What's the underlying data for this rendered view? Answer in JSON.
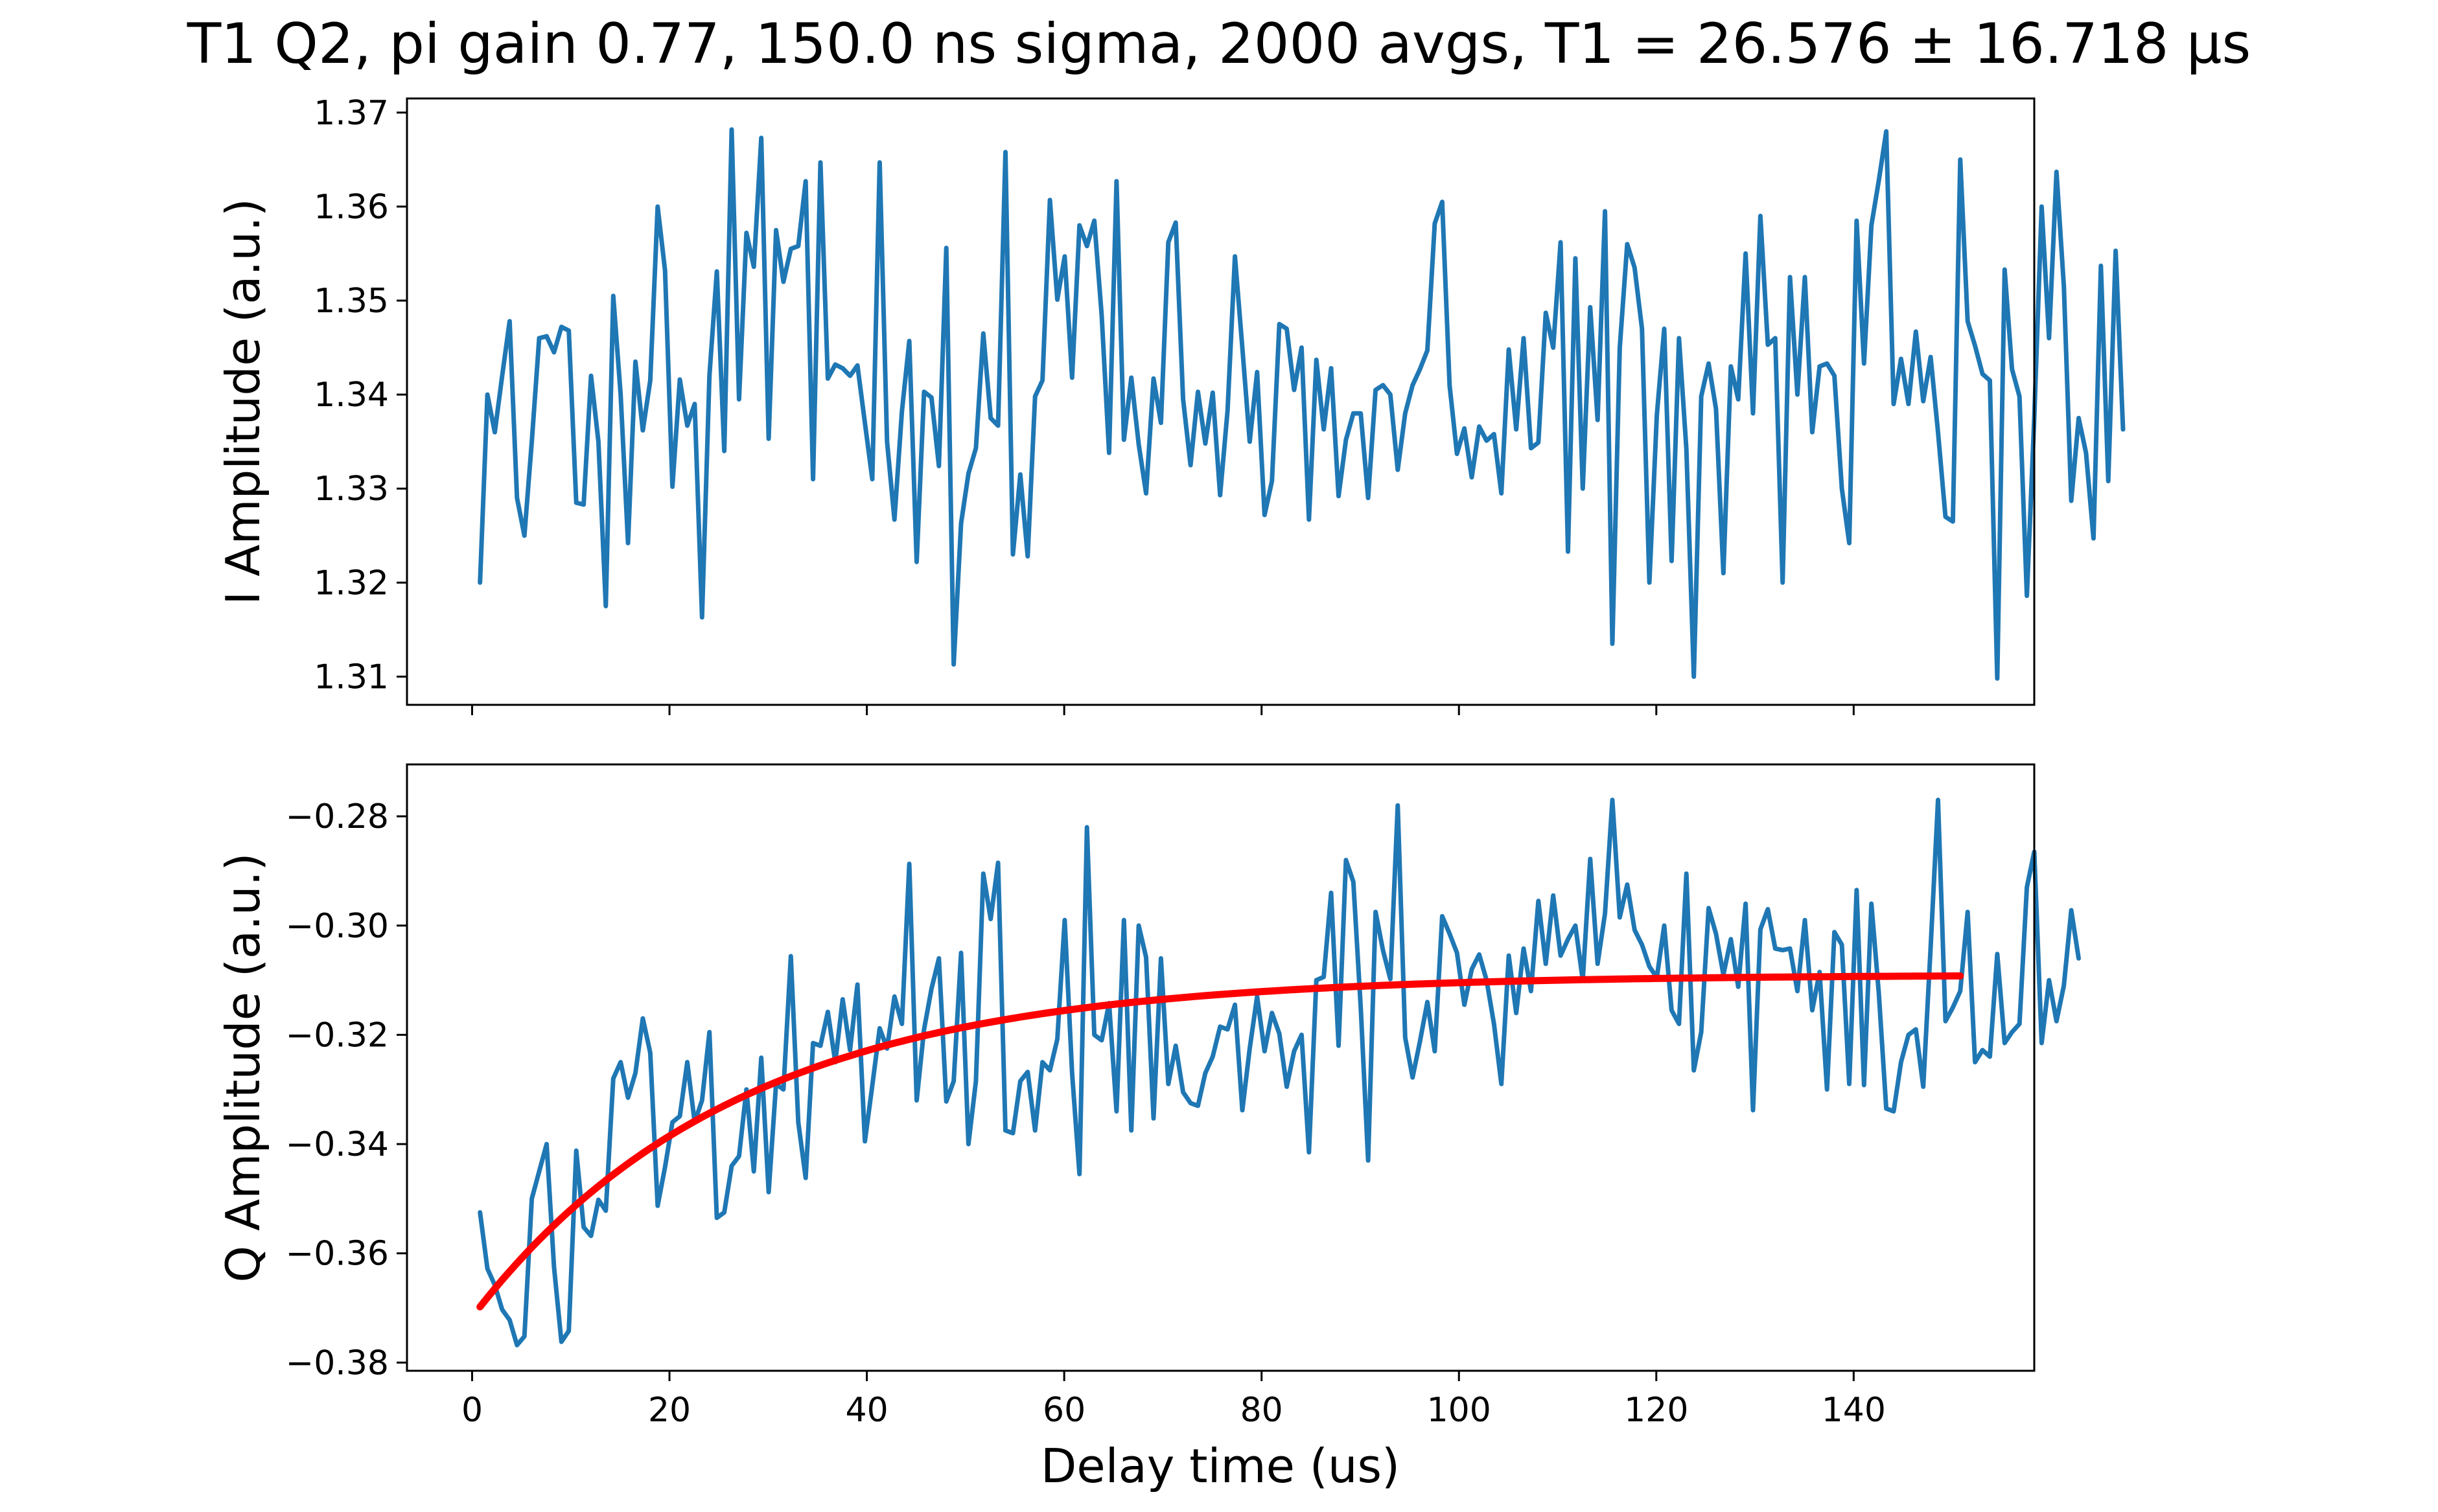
{
  "colors": {
    "data_line": "#1f77b4",
    "fit_line": "#ff0000",
    "axes": "#000000",
    "background": "#ffffff"
  },
  "chart_data": [
    {
      "id": "i-panel",
      "type": "line",
      "title": "T1 Q2, pi gain 0.77, 150.0 ns sigma, 2000 avgs, T1 = 26.576 ± 16.718 μs",
      "xlabel": "",
      "ylabel": "I Amplitude (a.u.)",
      "xlim": [
        -6.6,
        158.3
      ],
      "ylim": [
        1.307,
        1.3715
      ],
      "grid": false,
      "xticks": [
        0,
        20,
        40,
        60,
        80,
        100,
        120,
        140
      ],
      "xtick_labels_shown": false,
      "yticks": [
        1.31,
        1.32,
        1.33,
        1.34,
        1.35,
        1.36,
        1.37
      ],
      "ytick_labels": [
        "1.31",
        "1.32",
        "1.33",
        "1.34",
        "1.35",
        "1.36",
        "1.37"
      ],
      "x_start": 0.8,
      "x_step": 0.75,
      "series": [
        {
          "values": [
            1.32,
            1.34,
            1.336,
            1.342,
            1.3478,
            1.329,
            1.325,
            1.335,
            1.346,
            1.3462,
            1.3445,
            1.3472,
            1.3468,
            1.3285,
            1.3283,
            1.342,
            1.335,
            1.3175,
            1.3505,
            1.34,
            1.3242,
            1.3435,
            1.3362,
            1.3415,
            1.36,
            1.3532,
            1.3302,
            1.3416,
            1.3367,
            1.339,
            1.3163,
            1.342,
            1.3531,
            1.334,
            1.3682,
            1.3395,
            1.3572,
            1.3536,
            1.3673,
            1.3353,
            1.3575,
            1.352,
            1.3555,
            1.3558,
            1.3627,
            1.331,
            1.3647,
            1.3417,
            1.3432,
            1.3428,
            1.342,
            1.3431,
            1.337,
            1.331,
            1.3647,
            1.335,
            1.3267,
            1.3382,
            1.3457,
            1.3222,
            1.3403,
            1.3397,
            1.3324,
            1.3556,
            1.3113,
            1.3263,
            1.3316,
            1.3343,
            1.3465,
            1.3375,
            1.3367,
            1.3658,
            1.323,
            1.3315,
            1.3228,
            1.3398,
            1.3415,
            1.3607,
            1.3501,
            1.3547,
            1.3418,
            1.358,
            1.3558,
            1.3585,
            1.3484,
            1.3338,
            1.3627,
            1.3352,
            1.3418,
            1.3347,
            1.3295,
            1.3417,
            1.337,
            1.3562,
            1.3583,
            1.3395,
            1.3325,
            1.3403,
            1.3348,
            1.3402,
            1.3293,
            1.3383,
            1.3547,
            1.345,
            1.335,
            1.3424,
            1.3272,
            1.3308,
            1.3475,
            1.347,
            1.3405,
            1.345,
            1.3267,
            1.3437,
            1.3363,
            1.3428,
            1.3292,
            1.3352,
            1.338,
            1.338,
            1.329,
            1.3405,
            1.341,
            1.34,
            1.332,
            1.338,
            1.341,
            1.3427,
            1.3447,
            1.3582,
            1.3605,
            1.341,
            1.3337,
            1.3364,
            1.3312,
            1.3366,
            1.3351,
            1.3358,
            1.3295,
            1.3448,
            1.3363,
            1.346,
            1.3343,
            1.3349,
            1.3487,
            1.345,
            1.3562,
            1.3233,
            1.3545,
            1.33,
            1.3493,
            1.3373,
            1.3595,
            1.3135,
            1.345,
            1.356,
            1.3535,
            1.347,
            1.32,
            1.3378,
            1.347,
            1.3223,
            1.346,
            1.3342,
            1.31,
            1.3398,
            1.3433,
            1.3385,
            1.321,
            1.343,
            1.3395,
            1.355,
            1.338,
            1.359,
            1.3453,
            1.346,
            1.32,
            1.3525,
            1.34,
            1.3525,
            1.336,
            1.343,
            1.3433,
            1.342,
            1.33,
            1.3242,
            1.3585,
            1.3433,
            1.358,
            1.3628,
            1.368,
            1.339,
            1.3438,
            1.339,
            1.3467,
            1.3393,
            1.344,
            1.336,
            1.327,
            1.3265,
            1.365,
            1.3478,
            1.3452,
            1.3422,
            1.3415,
            1.3098,
            1.3533,
            1.3427,
            1.3398,
            1.3186,
            1.3375,
            1.36,
            1.346,
            1.3637,
            1.3515,
            1.3287,
            1.3375,
            1.3338,
            1.3247,
            1.3537,
            1.3308,
            1.3553,
            1.3363
          ]
        }
      ]
    },
    {
      "id": "q-panel",
      "type": "line",
      "xlabel": "Delay time (us)",
      "ylabel": "Q Amplitude (a.u.)",
      "xlim": [
        -6.6,
        158.3
      ],
      "ylim": [
        -0.3815,
        -0.2705
      ],
      "grid": false,
      "xticks": [
        0,
        20,
        40,
        60,
        80,
        100,
        120,
        140
      ],
      "xtick_labels": [
        "0",
        "20",
        "40",
        "60",
        "80",
        "100",
        "120",
        "140"
      ],
      "yticks": [
        -0.38,
        -0.36,
        -0.34,
        -0.32,
        -0.3,
        -0.28
      ],
      "ytick_labels": [
        "−0.38",
        "−0.36",
        "−0.34",
        "−0.32",
        "−0.30",
        "−0.28"
      ],
      "x_start": 0.8,
      "x_step": 0.75,
      "series": [
        {
          "values": [
            -0.3525,
            -0.3628,
            -0.3658,
            -0.3703,
            -0.3722,
            -0.3768,
            -0.3752,
            -0.35,
            -0.345,
            -0.34,
            -0.3625,
            -0.3762,
            -0.3742,
            -0.3412,
            -0.3552,
            -0.3568,
            -0.3502,
            -0.3522,
            -0.328,
            -0.325,
            -0.3315,
            -0.327,
            -0.317,
            -0.3233,
            -0.3513,
            -0.3442,
            -0.336,
            -0.3349,
            -0.325,
            -0.336,
            -0.332,
            -0.3195,
            -0.3535,
            -0.3525,
            -0.344,
            -0.3422,
            -0.33,
            -0.345,
            -0.3242,
            -0.3488,
            -0.329,
            -0.33,
            -0.3056,
            -0.336,
            -0.3462,
            -0.3215,
            -0.322,
            -0.3158,
            -0.325,
            -0.3135,
            -0.3228,
            -0.3108,
            -0.3395,
            -0.3293,
            -0.3188,
            -0.3225,
            -0.313,
            -0.318,
            -0.2887,
            -0.332,
            -0.319,
            -0.3116,
            -0.306,
            -0.3322,
            -0.3285,
            -0.305,
            -0.34,
            -0.3285,
            -0.2905,
            -0.2988,
            -0.2885,
            -0.3375,
            -0.338,
            -0.3285,
            -0.3268,
            -0.3375,
            -0.325,
            -0.3265,
            -0.3208,
            -0.299,
            -0.327,
            -0.3455,
            -0.282,
            -0.32,
            -0.321,
            -0.3142,
            -0.334,
            -0.299,
            -0.3375,
            -0.3,
            -0.3058,
            -0.3353,
            -0.306,
            -0.329,
            -0.322,
            -0.3305,
            -0.3325,
            -0.333,
            -0.327,
            -0.324,
            -0.3185,
            -0.319,
            -0.3145,
            -0.3338,
            -0.3225,
            -0.313,
            -0.323,
            -0.316,
            -0.3198,
            -0.3295,
            -0.323,
            -0.32,
            -0.3415,
            -0.31,
            -0.3094,
            -0.294,
            -0.322,
            -0.288,
            -0.292,
            -0.315,
            -0.343,
            -0.2975,
            -0.3045,
            -0.3098,
            -0.278,
            -0.3205,
            -0.3278,
            -0.3212,
            -0.314,
            -0.323,
            -0.2983,
            -0.3015,
            -0.305,
            -0.3145,
            -0.308,
            -0.3053,
            -0.31,
            -0.318,
            -0.329,
            -0.3055,
            -0.316,
            -0.3042,
            -0.312,
            -0.2955,
            -0.307,
            -0.2945,
            -0.3055,
            -0.3025,
            -0.3,
            -0.31,
            -0.2878,
            -0.307,
            -0.2978,
            -0.277,
            -0.2985,
            -0.2925,
            -0.3008,
            -0.3035,
            -0.3075,
            -0.3095,
            -0.3,
            -0.3155,
            -0.318,
            -0.2905,
            -0.3265,
            -0.3195,
            -0.2968,
            -0.3015,
            -0.309,
            -0.3025,
            -0.3112,
            -0.296,
            -0.3338,
            -0.3007,
            -0.297,
            -0.3042,
            -0.3045,
            -0.3042,
            -0.312,
            -0.299,
            -0.3155,
            -0.3085,
            -0.33,
            -0.3012,
            -0.3035,
            -0.329,
            -0.2935,
            -0.3292,
            -0.296,
            -0.3125,
            -0.3335,
            -0.334,
            -0.325,
            -0.32,
            -0.319,
            -0.3295,
            -0.304,
            -0.277,
            -0.3175,
            -0.315,
            -0.312,
            -0.2975,
            -0.325,
            -0.3228,
            -0.324,
            -0.3052,
            -0.3215,
            -0.3195,
            -0.318,
            -0.293,
            -0.2865,
            -0.3215,
            -0.31,
            -0.3175,
            -0.311,
            -0.2972,
            -0.306
          ]
        },
        {
          "type": "fit",
          "model": "exponential_decay",
          "x_range": [
            0.8,
            150.8
          ],
          "offset": -0.309,
          "amplitude": -0.0608,
          "tau": 26.576
        }
      ]
    }
  ]
}
